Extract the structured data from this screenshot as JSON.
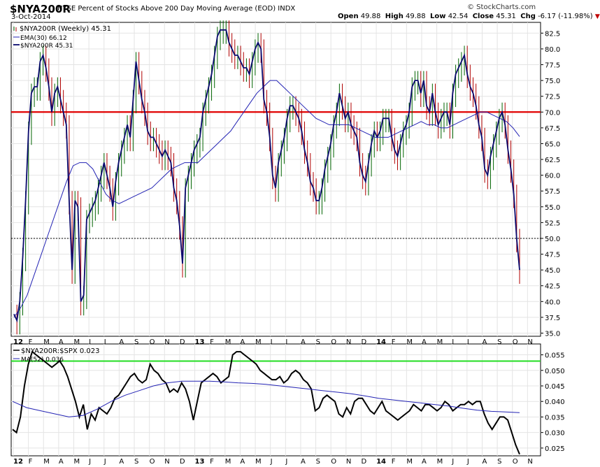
{
  "header": {
    "symbol": "$NYA200R",
    "title": "NYSE Percent of Stocks Above 200 Day Moving Average (EOD)  INDX",
    "date": "3-Oct-2014",
    "source": "© StockCharts.com",
    "open_label": "Open",
    "open": "49.88",
    "high_label": "High",
    "high": "49.88",
    "low_label": "Low",
    "low": "42.54",
    "close_label": "Close",
    "close": "45.31",
    "chg_label": "Chg",
    "chg": "-6.17 (-11.98%)",
    "chg_icon": "down-triangle-icon"
  },
  "colors": {
    "price": "#0a0a6e",
    "up_bar": "#006400",
    "down_bar": "#b00000",
    "ema": "#2323b4",
    "resistance": "#e00000",
    "ratio": "#000000",
    "ratio_ma": "#2323b4",
    "upper_line": "#22dd22"
  },
  "chart_data": [
    {
      "type": "line",
      "legend": [
        "$NYA200R (Weekly) 45.31",
        "EMA(30) 66.12",
        "$NYA200R 45.31"
      ],
      "x_tick_labels": [
        "12",
        "F",
        "M",
        "A",
        "M",
        "J",
        "J",
        "A",
        "S",
        "O",
        "N",
        "D",
        "13",
        "F",
        "M",
        "A",
        "M",
        "J",
        "J",
        "A",
        "S",
        "O",
        "N",
        "D",
        "14",
        "F",
        "M",
        "A",
        "M",
        "J",
        "J",
        "A",
        "S",
        "O",
        "N"
      ],
      "y_ticks": [
        35.0,
        37.5,
        40.0,
        42.5,
        45.0,
        47.5,
        50.0,
        52.5,
        55.0,
        57.5,
        60.0,
        62.5,
        65.0,
        67.5,
        70.0,
        72.5,
        75.0,
        77.5,
        80.0,
        82.5
      ],
      "ylim": [
        34.5,
        84.2
      ],
      "grid": true,
      "reference_lines": [
        {
          "value": 70.0,
          "style": "solid-red"
        },
        {
          "value": 50.0,
          "style": "dotted-black"
        }
      ],
      "series": [
        {
          "name": "$NYA200R",
          "values": [
            38,
            37,
            40,
            47,
            56,
            67,
            73,
            74,
            74,
            78,
            79,
            77,
            74,
            70,
            73,
            74,
            72,
            70,
            68,
            56,
            45,
            56,
            55,
            40,
            41,
            53,
            54,
            55,
            56,
            58,
            60,
            62,
            60,
            58,
            55,
            59,
            62,
            64,
            66,
            68,
            66,
            72,
            78,
            75,
            72,
            70,
            67,
            66,
            66,
            65,
            64,
            63,
            64,
            63,
            62,
            58,
            56,
            52,
            46,
            58,
            60,
            62,
            64,
            65,
            66,
            70,
            72,
            74,
            76,
            79,
            82,
            83,
            83,
            83,
            81,
            80,
            79,
            79,
            78,
            77,
            77,
            76,
            78,
            80,
            81,
            80,
            72,
            70,
            66,
            60,
            58,
            62,
            64,
            66,
            69,
            71,
            71,
            70,
            69,
            67,
            64,
            62,
            59,
            58,
            56,
            56,
            58,
            61,
            63,
            65,
            68,
            70,
            73,
            71,
            69,
            70,
            68,
            67,
            66,
            62,
            60,
            59,
            62,
            65,
            67,
            66,
            67,
            69,
            69,
            69,
            66,
            64,
            63,
            65,
            67,
            68,
            70,
            74,
            75,
            75,
            73,
            75,
            71,
            70,
            73,
            70,
            68,
            69,
            70,
            70,
            68,
            73,
            76,
            77,
            78,
            79,
            76,
            74,
            73,
            71,
            68,
            66,
            61,
            60,
            63,
            65,
            67,
            69,
            70,
            68,
            64,
            61,
            57,
            50,
            45
          ]
        },
        {
          "name": "EMA(30)",
          "values": [
            37.5,
            39,
            41,
            44,
            47,
            50,
            53,
            56,
            59,
            61.5,
            62,
            62,
            61,
            59,
            57,
            56,
            55.5,
            56,
            56.5,
            57,
            57.5,
            58,
            59,
            60,
            61,
            61.5,
            62,
            62,
            62,
            63,
            64,
            65,
            66,
            67,
            68.5,
            70,
            71.5,
            73,
            74,
            75,
            75,
            74,
            73,
            72,
            71,
            70,
            69,
            68.5,
            68,
            68,
            68,
            68,
            67.5,
            67,
            66.5,
            66,
            66,
            66,
            66.5,
            67,
            67.5,
            68,
            68.5,
            68,
            68,
            67.5,
            67.5,
            68,
            68.5,
            69,
            69.5,
            70,
            70,
            69.5,
            69,
            68.5,
            67.5,
            66.12
          ]
        }
      ]
    },
    {
      "type": "line",
      "legend": [
        "$NYA200R:$SPX 0.023",
        "MA(52) 0.036"
      ],
      "y_ticks": [
        0.025,
        0.03,
        0.035,
        0.04,
        0.045,
        0.05,
        0.055
      ],
      "ylim": [
        0.0225,
        0.0585
      ],
      "reference_lines": [
        {
          "value": 0.053,
          "style": "solid-green"
        }
      ],
      "series": [
        {
          "name": "$NYA200R:$SPX",
          "values": [
            0.031,
            0.03,
            0.035,
            0.045,
            0.052,
            0.056,
            0.055,
            0.054,
            0.053,
            0.052,
            0.051,
            0.052,
            0.053,
            0.051,
            0.048,
            0.044,
            0.04,
            0.035,
            0.039,
            0.031,
            0.036,
            0.034,
            0.038,
            0.037,
            0.036,
            0.038,
            0.041,
            0.042,
            0.044,
            0.046,
            0.048,
            0.049,
            0.047,
            0.046,
            0.047,
            0.052,
            0.05,
            0.049,
            0.047,
            0.046,
            0.043,
            0.044,
            0.043,
            0.046,
            0.044,
            0.04,
            0.034,
            0.04,
            0.046,
            0.047,
            0.048,
            0.049,
            0.048,
            0.046,
            0.047,
            0.048,
            0.055,
            0.056,
            0.056,
            0.055,
            0.054,
            0.053,
            0.052,
            0.05,
            0.049,
            0.048,
            0.047,
            0.047,
            0.048,
            0.046,
            0.047,
            0.049,
            0.05,
            0.049,
            0.047,
            0.046,
            0.044,
            0.037,
            0.038,
            0.041,
            0.042,
            0.041,
            0.04,
            0.036,
            0.035,
            0.038,
            0.036,
            0.04,
            0.041,
            0.041,
            0.039,
            0.037,
            0.036,
            0.038,
            0.04,
            0.037,
            0.036,
            0.035,
            0.034,
            0.035,
            0.036,
            0.037,
            0.039,
            0.038,
            0.037,
            0.039,
            0.039,
            0.038,
            0.037,
            0.038,
            0.04,
            0.039,
            0.037,
            0.038,
            0.039,
            0.039,
            0.04,
            0.039,
            0.04,
            0.04,
            0.036,
            0.033,
            0.031,
            0.033,
            0.035,
            0.035,
            0.034,
            0.03,
            0.026,
            0.023
          ]
        },
        {
          "name": "MA(52)",
          "values": [
            0.04,
            0.038,
            0.037,
            0.036,
            0.035,
            0.0355,
            0.0375,
            0.04,
            0.042,
            0.0435,
            0.045,
            0.046,
            0.0465,
            0.0465,
            0.0465,
            0.0463,
            0.046,
            0.0458,
            0.0455,
            0.045,
            0.0445,
            0.044,
            0.0435,
            0.043,
            0.0425,
            0.0418,
            0.041,
            0.0405,
            0.04,
            0.0395,
            0.039,
            0.0385,
            0.0378,
            0.0372,
            0.0368,
            0.0366,
            0.0364
          ]
        }
      ]
    }
  ]
}
